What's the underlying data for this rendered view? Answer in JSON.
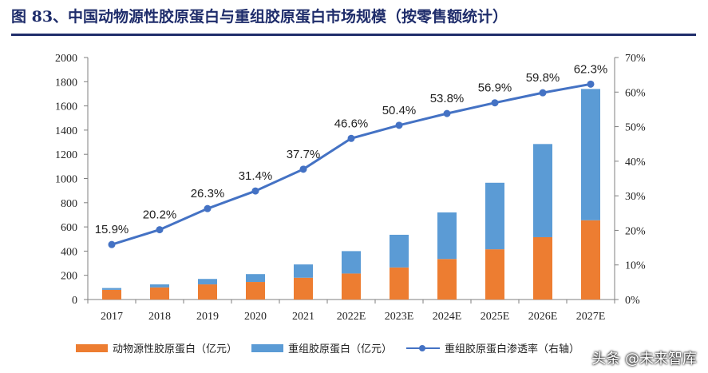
{
  "title": "图 83、中国动物源性胶原蛋白与重组胶原蛋白市场规模（按零售额统计）",
  "watermark": "头条 @未来智库",
  "chart_data": {
    "type": "bar",
    "categories": [
      "2017",
      "2018",
      "2019",
      "2020",
      "2021",
      "2022E",
      "2023E",
      "2024E",
      "2025E",
      "2026E",
      "2027E"
    ],
    "series": [
      {
        "name": "动物源性胶原蛋白（亿元）",
        "type": "bar",
        "stack": "total",
        "color": "#ed7d31",
        "values": [
          80,
          100,
          125,
          145,
          180,
          215,
          265,
          335,
          415,
          515,
          655
        ]
      },
      {
        "name": "重组胶原蛋白（亿元）",
        "type": "bar",
        "stack": "total",
        "color": "#5b9bd5",
        "values": [
          15,
          25,
          45,
          65,
          110,
          185,
          270,
          385,
          550,
          770,
          1085
        ]
      },
      {
        "name": "重组胶原蛋白渗透率（右轴）",
        "type": "line",
        "axis": "right",
        "color": "#4472c4",
        "values": [
          15.9,
          20.2,
          26.3,
          31.4,
          37.7,
          46.6,
          50.4,
          53.8,
          56.9,
          59.8,
          62.3
        ],
        "labels": [
          "15.9%",
          "20.2%",
          "26.3%",
          "31.4%",
          "37.7%",
          "46.6%",
          "50.4%",
          "53.8%",
          "56.9%",
          "59.8%",
          "62.3%"
        ]
      }
    ],
    "ylim": [
      0,
      2000
    ],
    "yticks": [
      "0",
      "200",
      "400",
      "600",
      "800",
      "1000",
      "1200",
      "1400",
      "1600",
      "1800",
      "2000"
    ],
    "y2lim": [
      0,
      70
    ],
    "y2ticks": [
      "0%",
      "10%",
      "20%",
      "30%",
      "40%",
      "50%",
      "60%",
      "70%"
    ],
    "legend_position": "bottom",
    "grid": false
  }
}
